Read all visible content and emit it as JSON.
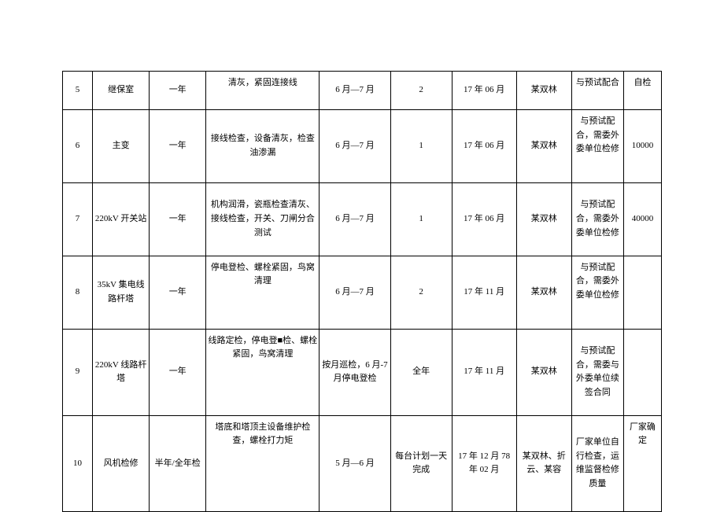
{
  "table": {
    "rows": [
      {
        "num": "5",
        "item": "继保室",
        "cycle": "一年",
        "content": "清灰，紧固连接线",
        "period": "6 月—7 月",
        "days": "2",
        "date": "17 年 06 月",
        "person": "某双林",
        "note": "与预试配合",
        "cost": "自检"
      },
      {
        "num": "6",
        "item": "主变",
        "cycle": "一年",
        "content": "接线检查，设备清灰，检查油渗漏",
        "period": "6 月—7 月",
        "days": "1",
        "date": "17 年 06 月",
        "person": "某双林",
        "note": "与预试配合，需委外委单位检修",
        "cost": "10000"
      },
      {
        "num": "7",
        "item": "220kV 开关站",
        "cycle": "一年",
        "content": "机构润滑，瓷瓶检查清灰、接线检查，开关、刀闸分合测试",
        "period": "6 月—7 月",
        "days": "1",
        "date": "17 年 06 月",
        "person": "某双林",
        "note": "与预试配合，需委外委单位检修",
        "cost": "40000"
      },
      {
        "num": "8",
        "item": "35kV 集电线路杆塔",
        "cycle": "一年",
        "content": "停电登检、螺栓紧固，鸟窝清理",
        "period": "6 月—7 月",
        "days": "2",
        "date": "17 年 11 月",
        "person": "某双林",
        "note": "与预试配合，需委外委单位检修",
        "cost": ""
      },
      {
        "num": "9",
        "item": "220kV 线路杆塔",
        "cycle": "一年",
        "content": "线路定检，停电登■检、螺栓紧固，鸟窝清理",
        "period": "按月巡检，6 月-7 月停电登检",
        "days": "全年",
        "date": "17 年 11 月",
        "person": "某双林",
        "note": "与预试配合，需委与外委单位续签合同",
        "cost": ""
      },
      {
        "num": "10",
        "item": "风机检修",
        "cycle": "半年/全年检",
        "content": "塔底和塔顶主设备维护检查，螺栓打力矩",
        "period": "5 月—6 月",
        "days": "每台计划一天完成",
        "date": "17 年 12 月 78 年 02 月",
        "person": "某双林、折云、某容",
        "note": "厂家单位自行检查，运维监督检修质量",
        "cost": "厂家确定"
      }
    ]
  }
}
